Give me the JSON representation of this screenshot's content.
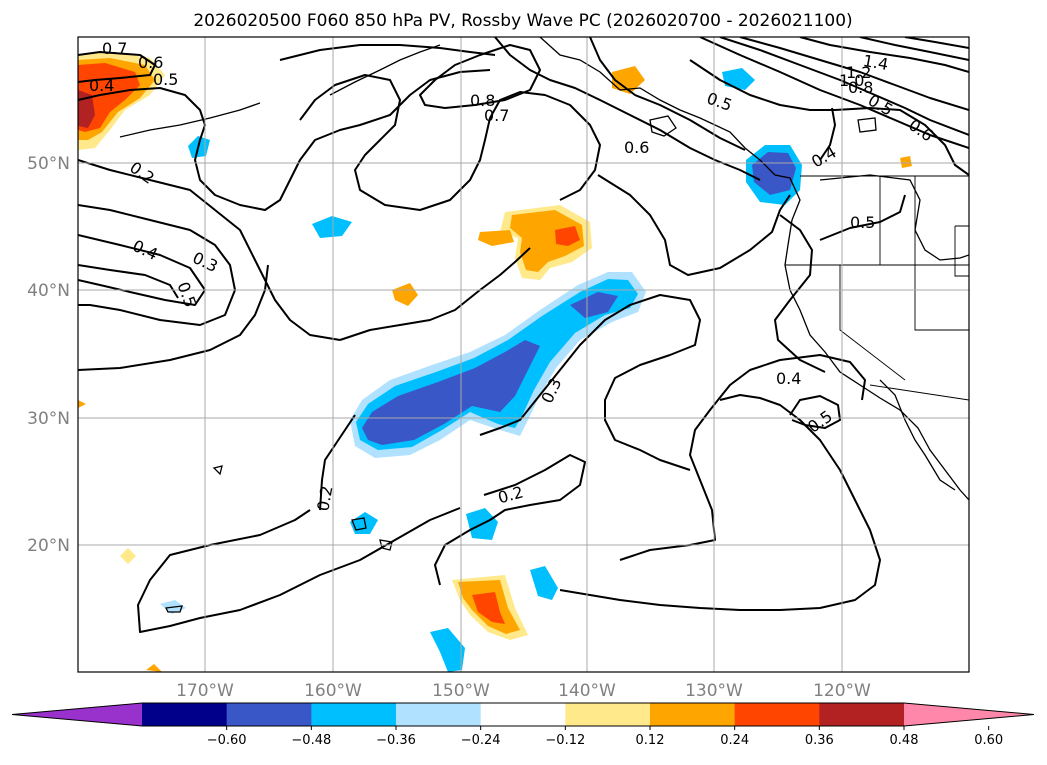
{
  "title": "2026020500 F060 850 hPa PV, Rossby Wave PC (2026020700 - 2026021100)",
  "lat_labels": [
    "50°N",
    "40°N",
    "30°N",
    "20°N"
  ],
  "lon_labels": [
    "170°W",
    "160°W",
    "150°W",
    "140°W",
    "130°W",
    "120°W"
  ],
  "colorbar": {
    "ticks": [
      "−0.60",
      "−0.48",
      "−0.36",
      "−0.24",
      "−0.12",
      "0.12",
      "0.24",
      "0.36",
      "0.48",
      "0.60"
    ],
    "colors": [
      "#9932cc",
      "#00008b",
      "#3a57c8",
      "#00bfff",
      "#b0e2ff",
      "#ffffff",
      "#ffe98a",
      "#ffa500",
      "#ff4500",
      "#b22222",
      "#ff88aa"
    ]
  },
  "contour_labels": [
    "0.7",
    "0.6",
    "0.5",
    "0.4",
    "0.2",
    "0.4",
    "0.3",
    "0.5",
    "0.8",
    "0.7",
    "0.6",
    "0.5",
    "1.4",
    "1.2",
    "1.0",
    "0.8",
    "0.5",
    "0.6",
    "0.4",
    "0.5",
    "0.3",
    "0.2",
    "0.2",
    "0.4",
    "0.5"
  ]
}
